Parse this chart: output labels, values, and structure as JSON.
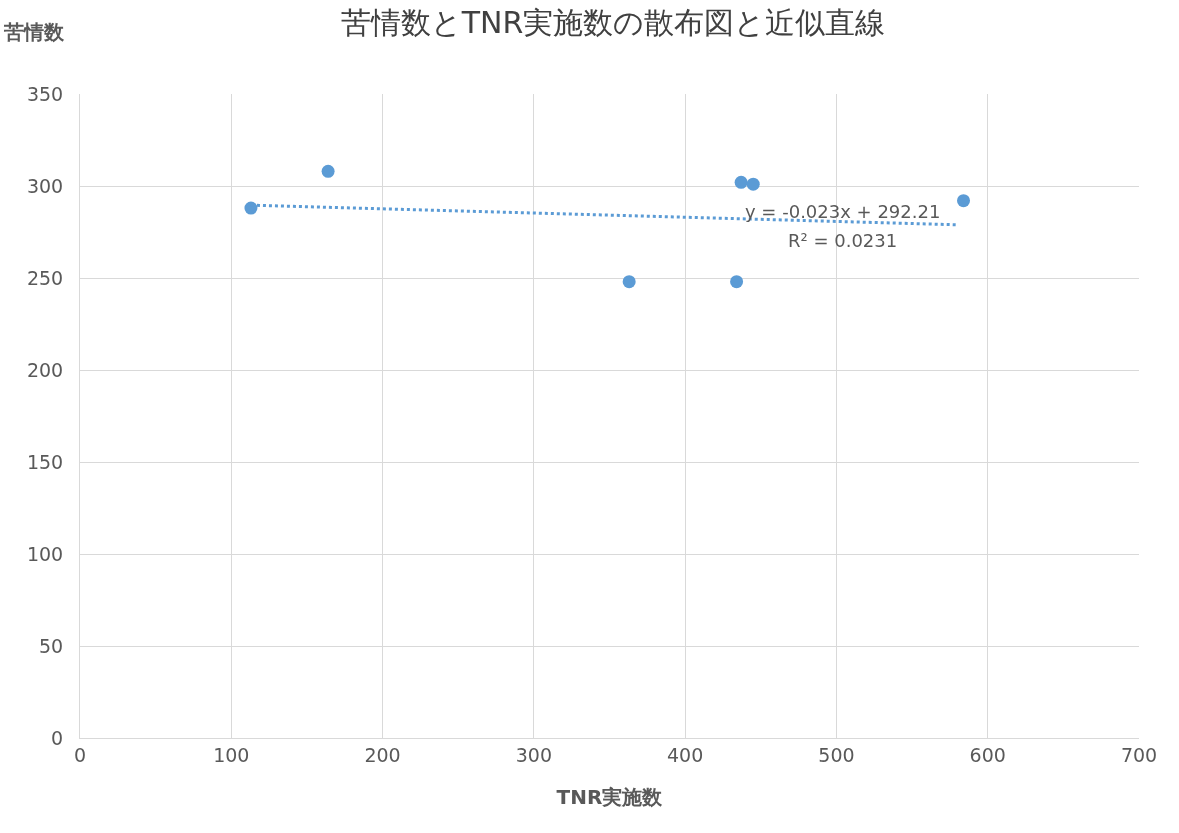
{
  "chart_data": {
    "type": "scatter",
    "title": "苦情数とTNR実施数の散布図と近似直線",
    "xlabel": "TNR実施数",
    "ylabel": "苦情数",
    "xlim": [
      0,
      700
    ],
    "xticks": [
      0,
      100,
      200,
      300,
      400,
      500,
      600,
      700
    ],
    "ylim": [
      0,
      350
    ],
    "yticks": [
      0,
      50,
      100,
      150,
      200,
      250,
      300,
      350
    ],
    "grid": true,
    "marker": "circle",
    "series": [
      {
        "color": "#5b9bd5",
        "x": [
          113,
          164,
          363,
          437,
          445,
          434,
          584
        ],
        "values": [
          288,
          308,
          248,
          302,
          301,
          248,
          292
        ]
      },
      {
        "type": "line",
        "color": "#5b9bd5",
        "line_style": "dotted",
        "marker": "none",
        "x": [
          113,
          580
        ],
        "values": [
          289.6,
          278.9
        ]
      }
    ],
    "annotations": [
      "y = -0.023x + 292.21",
      "R² = 0.0231"
    ]
  }
}
